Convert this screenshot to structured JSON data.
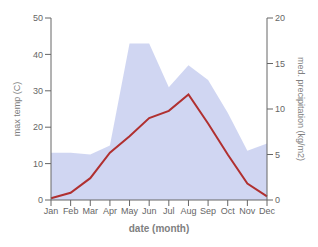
{
  "chart_data": {
    "type": "line",
    "categories": [
      "Jan",
      "Feb",
      "Mar",
      "Apr",
      "May",
      "Jun",
      "Jul",
      "Aug",
      "Sep",
      "Oct",
      "Nov",
      "Dec"
    ],
    "series": [
      {
        "type": "area",
        "color": "#aab5e8",
        "values": [
          13.0,
          13.0,
          12.5,
          15.0,
          43.0,
          43.0,
          31.0,
          37.0,
          33.0,
          24.0,
          13.5,
          15.5
        ]
      },
      {
        "type": "line",
        "color": "#b03030",
        "values": [
          0.5,
          2.0,
          6.0,
          13.0,
          17.5,
          22.5,
          24.5,
          29.0,
          21.0,
          12.5,
          4.5,
          1.0
        ]
      }
    ],
    "xlabel": "date (month)",
    "ylabel": "max temp (C)",
    "y2label": "med. precipitation (kg/m2)",
    "ylim": [
      0,
      50
    ],
    "yticks": [
      0,
      10,
      20,
      30,
      40,
      50
    ],
    "y2lim": [
      0,
      20
    ],
    "y2ticks": [
      0,
      5,
      10,
      15,
      20
    ],
    "grid": false
  }
}
